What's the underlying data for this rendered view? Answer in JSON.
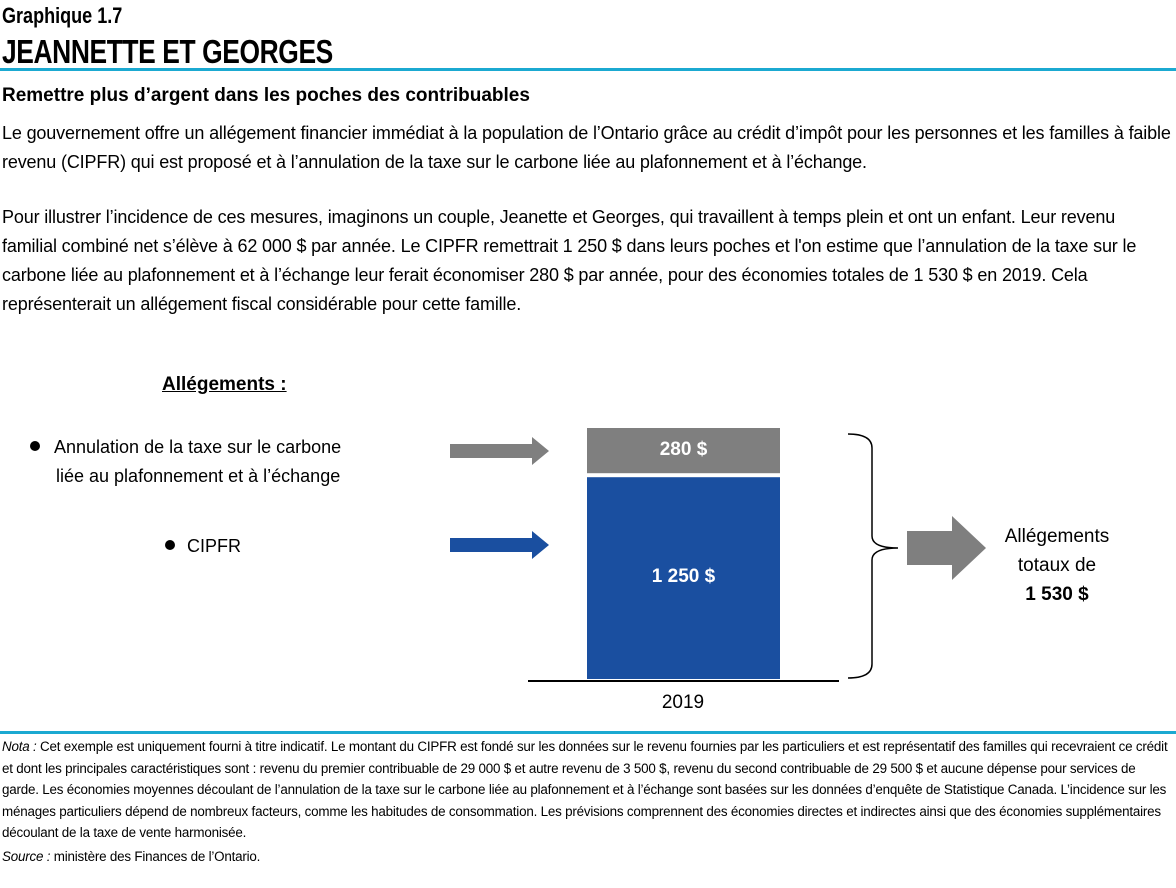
{
  "header": {
    "kicker": "Graphique 1.7",
    "title": "JEANNETTE  ET GEORGES",
    "subtitle": "Remettre plus d’argent dans les poches des contribuables"
  },
  "body": {
    "paragraph1": "Le gouvernement offre un allégement financier immédiat à la population de l’Ontario grâce au crédit d’impôt pour les personnes et les familles à faible revenu (CIPFR) qui est proposé et à l’annulation de la taxe sur le carbone liée au plafonnement et à l’échange.",
    "paragraph2": "Pour illustrer l’incidence de ces mesures, imaginons un couple, Jeanette et Georges, qui travaillent à temps plein et ont un enfant. Leur revenu familial combiné net s’élève à 62 000 $ par année. Le CIPFR remettrait 1 250 $ dans leurs poches et l'on estime que l’annulation de la taxe sur le carbone liée au plafonnement et à l’échange leur ferait économiser 280 $ par année, pour des économies totales de 1 530 $ en 2019. Cela représenterait un allégement fiscal considérable pour cette famille."
  },
  "legend": {
    "heading": "Allégements :",
    "items": [
      {
        "line1": "Annulation de la taxe sur le carbone",
        "line2": "liée au plafonnement et à l’échange",
        "color": "#7f7f7f"
      },
      {
        "line1": "CIPFR",
        "color": "#1a4fa0"
      }
    ]
  },
  "chart_data": {
    "type": "bar",
    "stacked": true,
    "categories": [
      "2019"
    ],
    "series": [
      {
        "name": "CIPFR",
        "values": [
          1250
        ],
        "label": "1 250 $",
        "color": "#1a4fa0"
      },
      {
        "name": "Annulation de la taxe sur le carbone liée au plafonnement et à l’échange",
        "values": [
          280
        ],
        "label": "280 $",
        "color": "#7f7f7f"
      }
    ],
    "total": {
      "line1": "Allégements",
      "line2": "totaux de",
      "value": "1 530 $"
    }
  },
  "footer": {
    "note_label": "Nota :",
    "note": " Cet exemple est uniquement fourni à titre indicatif.  Le montant du CIPFR est fondé sur les données sur le revenu fournies par les particuliers et est représentatif des familles qui recevraient ce crédit et dont les principales caractéristiques sont : revenu du premier contribuable de 29 000 $ et autre revenu de 3 500 $, revenu du second contribuable de 29 500 $ et aucune dépense pour services de garde. Les économies moyennes découlant de l’annulation de la taxe sur le carbone liée au plafonnement et à l’échange sont basées sur les données d’enquête de Statistique  Canada. L’incidence sur les ménages particuliers dépend de nombreux facteurs, comme les habitudes de consommation. Les prévisions comprennent des économies directes et indirectes ainsi que des économies supplémentaires découlant de la taxe de vente harmonisée.",
    "source_label": "Source :",
    "source": " ministère des Finances de l’Ontario."
  },
  "colors": {
    "rule": "#1ba9d1",
    "arrow_gray": "#7f7f7f",
    "arrow_blue": "#1a4fa0"
  }
}
